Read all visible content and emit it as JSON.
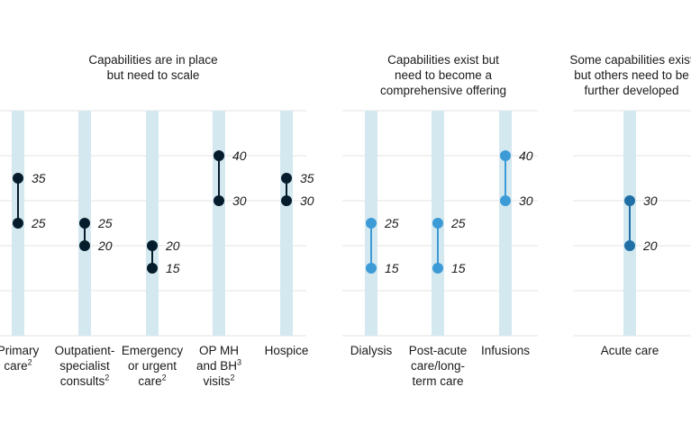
{
  "chart_data": {
    "type": "range",
    "ylim": [
      0,
      50
    ],
    "panels": [
      {
        "title": "Capabilities are in place\nbut need to scale",
        "color": "#051c2c",
        "categories": [
          {
            "label": "Primary\ncare",
            "sup": "2",
            "low": 25,
            "high": 35
          },
          {
            "label": "Outpatient-\nspecialist\nconsults",
            "sup": "2",
            "low": 20,
            "high": 25
          },
          {
            "label": "Emergency\nor urgent\ncare",
            "sup": "2",
            "low": 15,
            "high": 20
          },
          {
            "label": "OP MH\nand BH\nvisits",
            "sup": "3|2",
            "low": 30,
            "high": 40
          },
          {
            "label": "Hospice",
            "sup": "",
            "low": 30,
            "high": 35
          }
        ]
      },
      {
        "title": "Capabilities exist but\nneed to become a\ncomprehensive offering",
        "color": "#3c9bd6",
        "categories": [
          {
            "label": "Dialysis",
            "sup": "",
            "low": 15,
            "high": 25
          },
          {
            "label": "Post-acute\ncare/long-\nterm care",
            "sup": "",
            "low": 15,
            "high": 25
          },
          {
            "label": "Infusions",
            "sup": "",
            "low": 30,
            "high": 40
          }
        ]
      },
      {
        "title": "Some capabilities exist\nbut others need to be\nfurther developed",
        "color": "#1f6fa6",
        "categories": [
          {
            "label": "Acute care",
            "sup": "",
            "low": 20,
            "high": 30
          }
        ]
      }
    ]
  }
}
